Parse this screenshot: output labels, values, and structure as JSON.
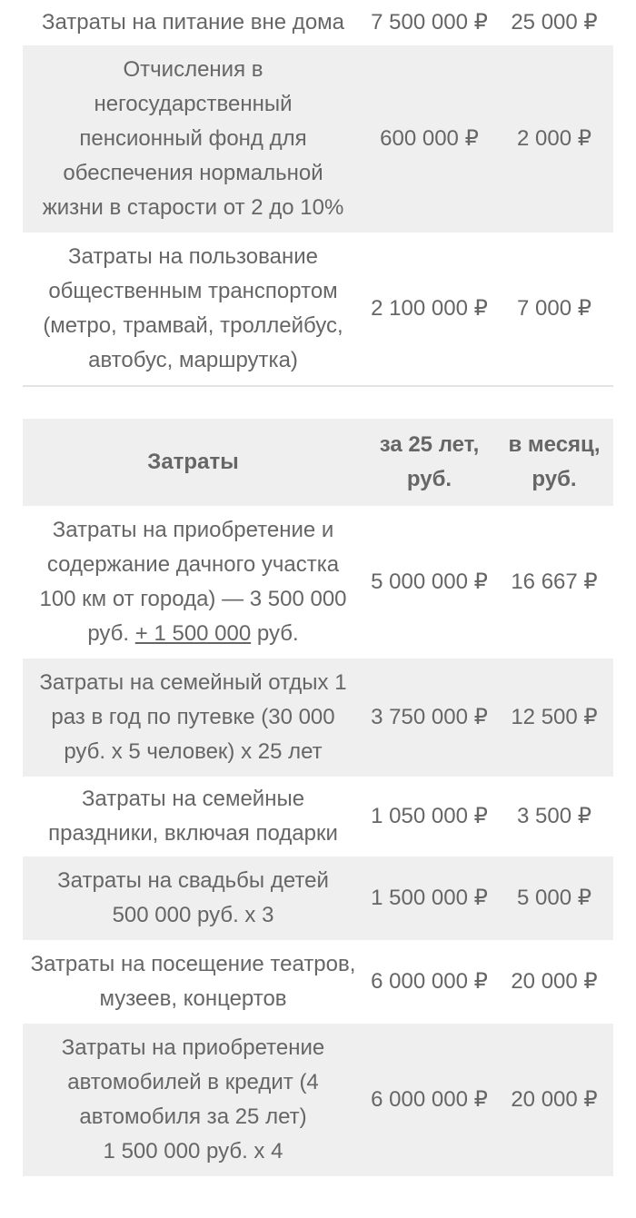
{
  "colors": {
    "background": "#ffffff",
    "row_alt_background": "#efefef",
    "text": "#666666",
    "table_border": "#e3e3e3"
  },
  "currency_symbol": "₽",
  "table1": {
    "rows": [
      {
        "desc": "Затраты на питание вне дома",
        "per25": "7 500 000 ₽",
        "monthly": "25 000 ₽"
      },
      {
        "desc": "Отчисления в негосударственный пенсионный фонд для обеспечения нормальной жизни в старости от 2 до 10%",
        "per25": "600 000 ₽",
        "monthly": "2 000 ₽"
      },
      {
        "desc": "Затраты на пользование общественным транспортом (метро, трамвай, троллейбус, автобус, маршрутка)",
        "per25": "2 100 000 ₽",
        "monthly": "7 000 ₽"
      }
    ]
  },
  "table2": {
    "header": {
      "col1": "Затраты",
      "col2": "за 25 лет, руб.",
      "col3": "в месяц, руб."
    },
    "rows": [
      {
        "desc_before": "Затраты на приобретение и содержание дачного участка 100 км от города) — 3 500 000 руб. ",
        "desc_underline": "+ 1 500 000",
        "desc_after": " руб.",
        "per25": "5 000 000 ₽",
        "monthly": "16 667 ₽"
      },
      {
        "desc": "Затраты на семейный отдых 1 раз в год по путевке (30 000 руб. х 5 человек) х 25 лет",
        "per25": "3 750 000 ₽",
        "monthly": "12 500 ₽"
      },
      {
        "desc": "Затраты на семейные праздники, включая подарки",
        "per25": "1 050 000 ₽",
        "monthly": "3 500 ₽"
      },
      {
        "desc": "Затраты на свадьбы детей 500 000 руб. х 3",
        "per25": "1 500 000 ₽",
        "monthly": "5 000 ₽"
      },
      {
        "desc": "Затраты на посещение театров, музеев, концертов",
        "per25": "6 000 000 ₽",
        "monthly": "20 000 ₽"
      },
      {
        "desc": "Затраты на приобретение автомобилей в кредит (4 автомобиля за 25 лет) 1 500 000 руб. х 4",
        "per25": "6 000 000 ₽",
        "monthly": "20 000 ₽"
      }
    ]
  }
}
